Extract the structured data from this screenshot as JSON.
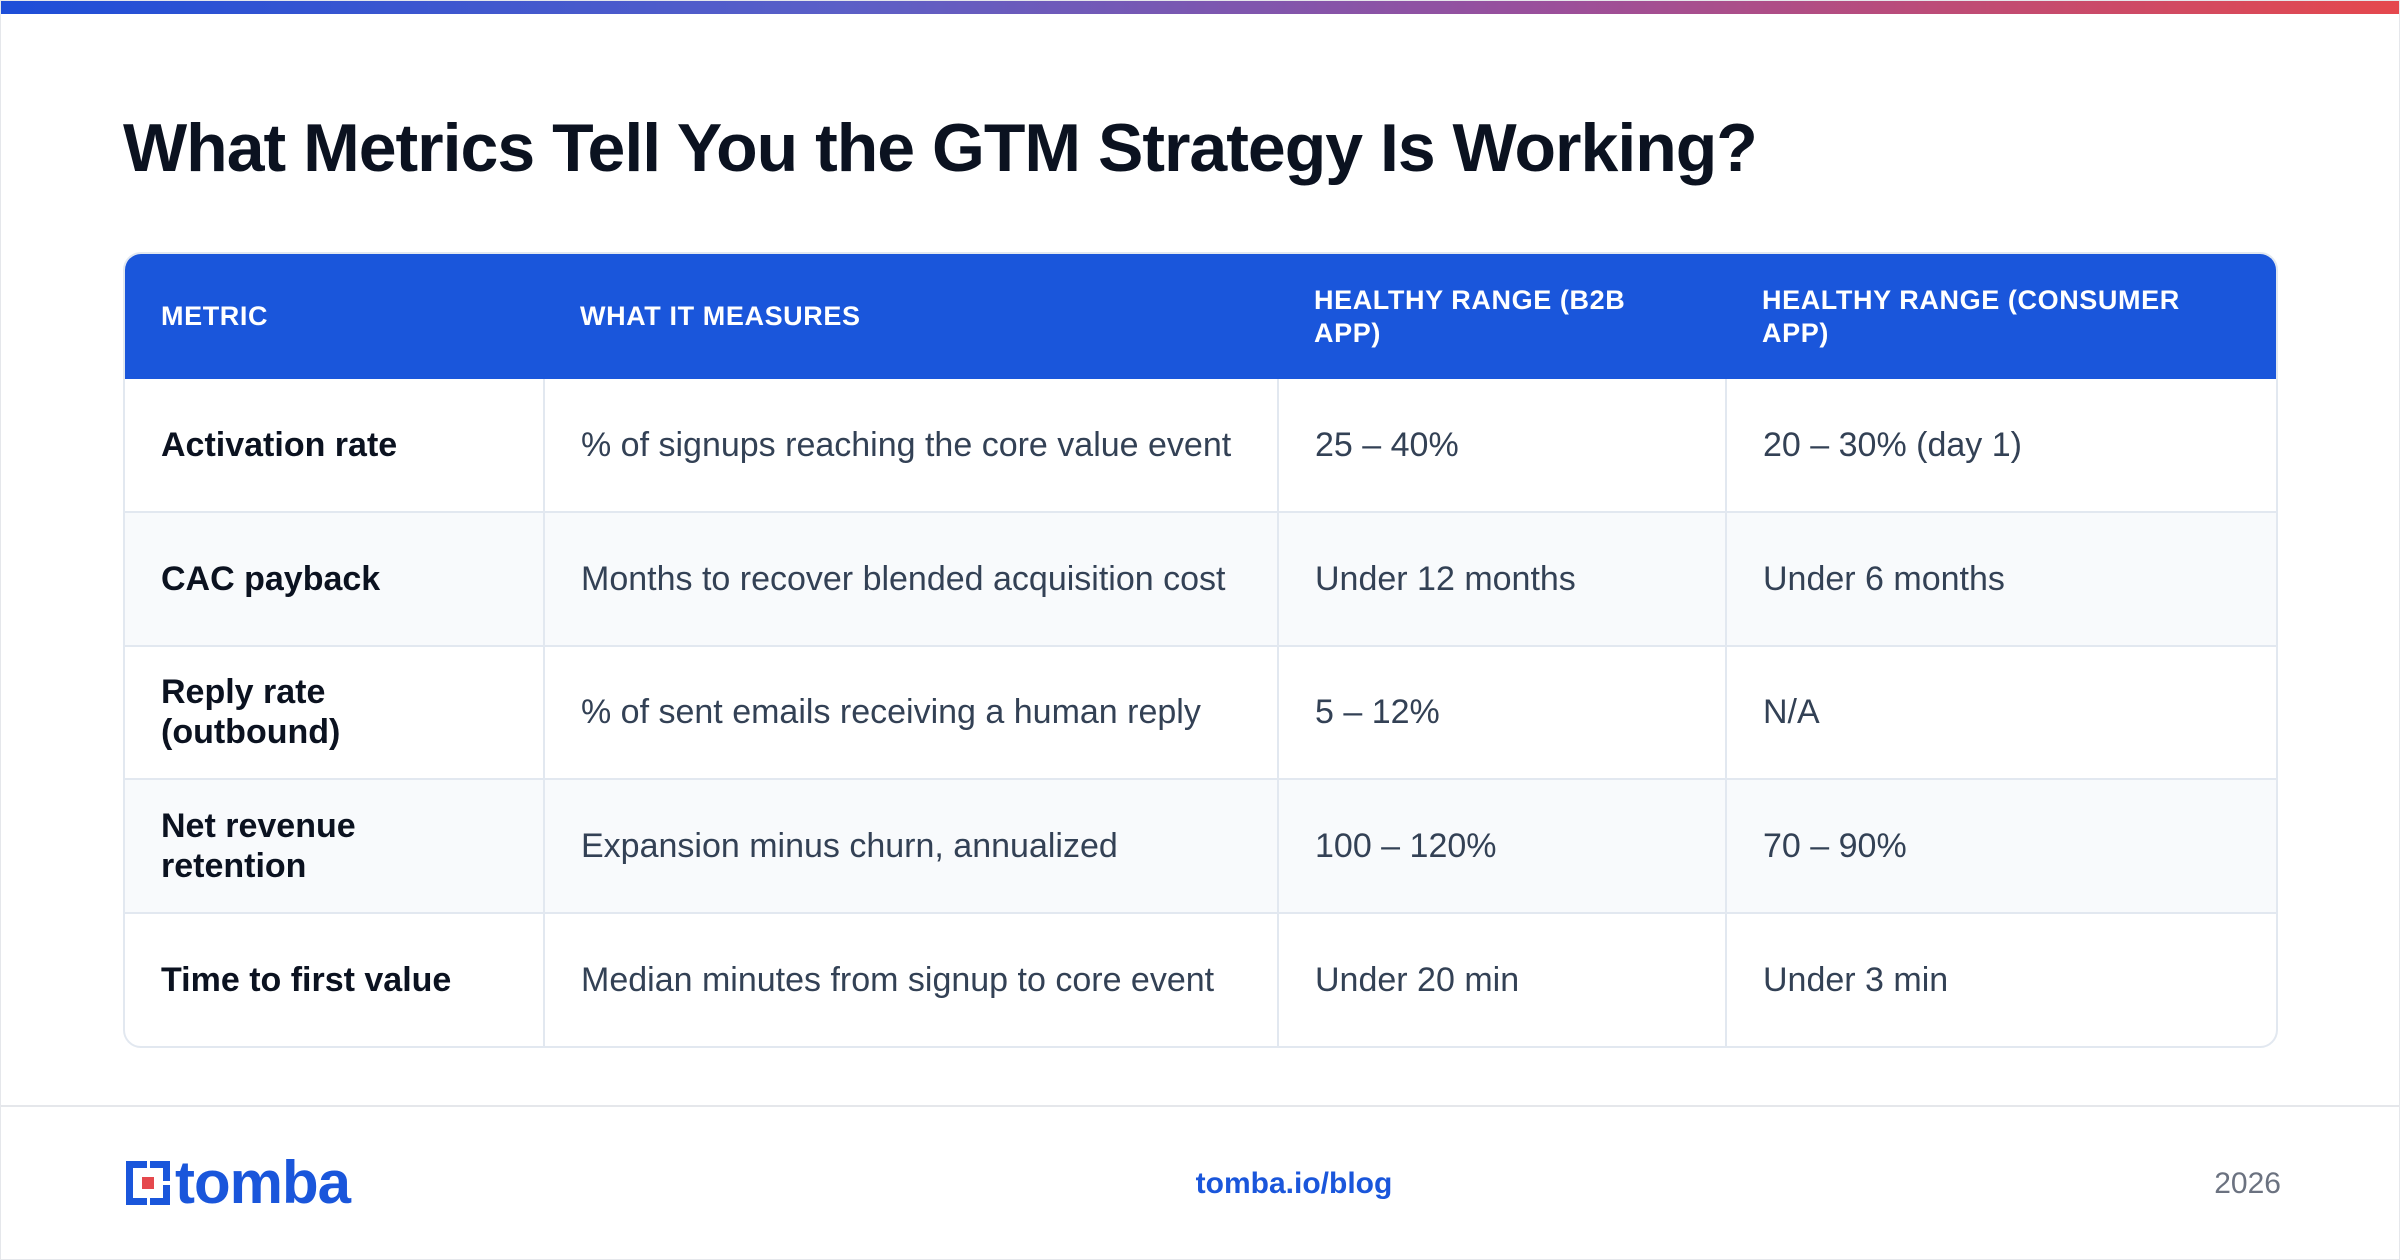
{
  "page": {
    "title": "What Metrics Tell You the GTM Strategy Is Working?"
  },
  "table": {
    "headers": [
      "METRIC",
      "WHAT IT MEASURES",
      "HEALTHY RANGE (B2B APP)",
      "HEALTHY RANGE (CONSUMER APP)"
    ],
    "rows": [
      {
        "metric": "Activation rate",
        "measures": "% of signups reaching the core value event",
        "b2b": "25 – 40%",
        "consumer": "20 – 30% (day 1)"
      },
      {
        "metric": "CAC payback",
        "measures": "Months to recover blended acquisition cost",
        "b2b": "Under 12 months",
        "consumer": "Under 6 months"
      },
      {
        "metric": "Reply rate (outbound)",
        "measures": "% of sent emails receiving a human reply",
        "b2b": "5 – 12%",
        "consumer": "N/A"
      },
      {
        "metric": "Net revenue retention",
        "measures": "Expansion minus churn, annualized",
        "b2b": "100 – 120%",
        "consumer": "70 – 90%"
      },
      {
        "metric": "Time to first value",
        "measures": "Median minutes from signup to core event",
        "b2b": "Under 20 min",
        "consumer": "Under 3 min"
      }
    ]
  },
  "footer": {
    "logo_text": "tomba",
    "logo_icon": "tomba-logo-icon",
    "link": "tomba.io/blog",
    "year": "2026"
  },
  "colors": {
    "accent": "#1a56db",
    "gradient": [
      "#1d4ed8",
      "#9b4f9a",
      "#e5484d"
    ],
    "logo_red": "#e5484d"
  }
}
